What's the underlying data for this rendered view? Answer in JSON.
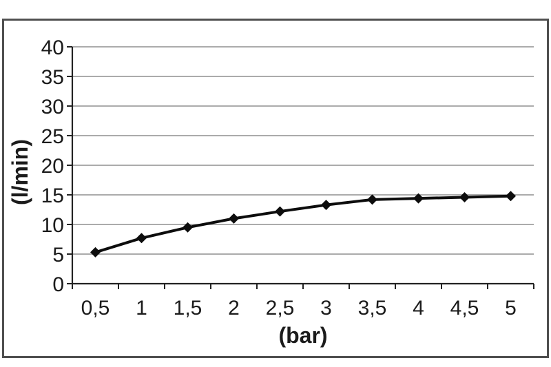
{
  "chart_data": {
    "type": "line",
    "categories": [
      "0,5",
      "1",
      "1,5",
      "2",
      "2,5",
      "3",
      "3,5",
      "4",
      "4,5",
      "5"
    ],
    "x_numeric": [
      0.5,
      1,
      1.5,
      2,
      2.5,
      3,
      3.5,
      4,
      4.5,
      5
    ],
    "values": [
      5.3,
      7.7,
      9.5,
      11.0,
      12.2,
      13.3,
      14.2,
      14.4,
      14.6,
      14.8
    ],
    "title": "",
    "xlabel": "(bar)",
    "ylabel": "(l/min)",
    "ylim": [
      0,
      40
    ],
    "yticks": [
      0,
      5,
      10,
      15,
      20,
      25,
      30,
      35,
      40
    ],
    "ytick_labels": [
      "0",
      "5",
      "10",
      "15",
      "20",
      "25",
      "30",
      "35",
      "40"
    ],
    "grid": true,
    "legend_position": "none",
    "marker": "diamond",
    "decimal_separator": ",",
    "colors": {
      "line": "#0d0d0d",
      "marker": "#0d0d0d",
      "gridline": "#8f8f8f",
      "axis": "#222222",
      "text": "#1b1b1b",
      "frame_border": "#4f4f4f",
      "background": "#ffffff"
    }
  }
}
